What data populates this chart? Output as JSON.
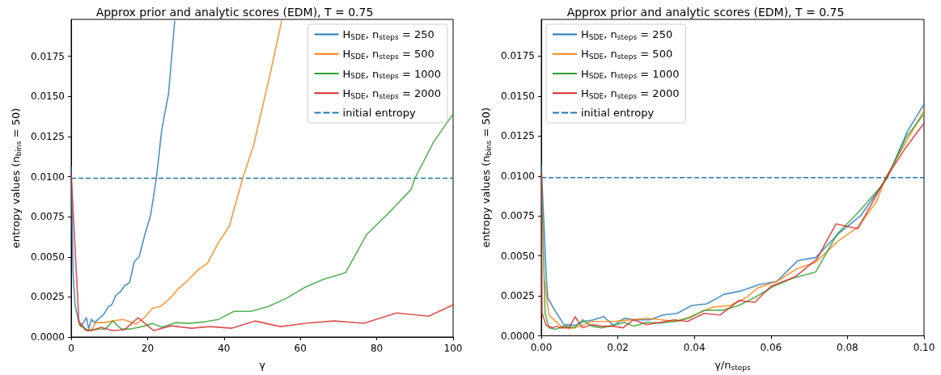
{
  "chart_data": [
    {
      "type": "line",
      "title": "Approx prior and analytic scores (EDM), T = 0.75",
      "xlabel": "γ",
      "ylabel": "entropy values (n$_{bins}$ = 50)",
      "xlim": [
        0,
        100
      ],
      "xticks": [
        0,
        20,
        40,
        60,
        80,
        100
      ],
      "ylim": [
        0,
        0.0198
      ],
      "yticks": [
        {
          "value": 0,
          "label": "0.0000"
        },
        {
          "value": 0.0025,
          "label": "0.0025"
        },
        {
          "value": 0.005,
          "label": "0.0050"
        },
        {
          "value": 0.0075,
          "label": "0.0075"
        },
        {
          "value": 0.01,
          "label": "0.0100"
        },
        {
          "value": 0.0125,
          "label": "0.0125"
        },
        {
          "value": 0.015,
          "label": "0.0150"
        },
        {
          "value": 0.0175,
          "label": "0.0175"
        }
      ],
      "grid": false,
      "legend": "top right",
      "line_style": "solid",
      "marker": "none",
      "ref_lines": [
        {
          "axis": "y",
          "value": 0.0099,
          "label": "initial entropy",
          "color": "#1f77b4",
          "line_style": "dashed"
        }
      ],
      "series": [
        {
          "name": "H$_{SDE}$, n$_{steps}$ = 250",
          "color": "#1f77b4",
          "x": [
            0,
            0.5,
            1,
            2,
            2.5,
            4,
            4.6,
            5.3,
            6.1,
            7.5,
            8.5,
            9.75,
            10.6,
            11.7,
            12.8,
            14,
            15.3,
            16.5,
            17.8,
            19.3,
            20.8,
            22.3,
            23.7,
            25.5,
            27.1
          ],
          "values": [
            0.0106,
            0.004,
            0.002,
            0.0009,
            0.00065,
            0.0012,
            0.0005,
            0.0011,
            0.0009,
            0.0012,
            0.0014,
            0.0019,
            0.002,
            0.0026,
            0.0028,
            0.0032,
            0.0034,
            0.0047,
            0.005,
            0.0064,
            0.0076,
            0.0099,
            0.0129,
            0.0152,
            0.0197
          ]
        },
        {
          "name": "H$_{SDE}$, n$_{steps}$ = 500",
          "color": "#ff7f0e",
          "x": [
            2,
            3.5,
            5.3,
            6.4,
            8.7,
            10.8,
            13.5,
            14.9,
            17,
            19.1,
            21.3,
            23.4,
            25.8,
            28,
            30.4,
            33.3,
            35.7,
            38.6,
            41.4,
            44.9,
            47.7,
            52,
            55.1
          ],
          "values": [
            0.0009,
            0.0005,
            0.0004,
            0.0009,
            0.0009,
            0.001,
            0.0011,
            0.001,
            0.0008,
            0.0012,
            0.0018,
            0.0019,
            0.0024,
            0.003,
            0.0035,
            0.0042,
            0.0046,
            0.0059,
            0.0069,
            0.0099,
            0.0119,
            0.0163,
            0.0197
          ]
        },
        {
          "name": "H$_{SDE}$, n$_{steps}$ = 1000",
          "color": "#2ca02c",
          "x": [
            2,
            4.3,
            5.3,
            8.9,
            10.9,
            13.1,
            15.6,
            19.5,
            21.3,
            23.7,
            27.3,
            30.8,
            35,
            38.6,
            42.6,
            47,
            51.6,
            56.2,
            61.2,
            66.1,
            71.8,
            77.4,
            83,
            89,
            90,
            95,
            100
          ],
          "values": [
            0.0008,
            0.0004,
            0.00045,
            0.0005,
            0.001,
            0.0005,
            0.0005,
            0.0007,
            0.00085,
            0.0006,
            0.0009,
            0.00085,
            0.00095,
            0.0011,
            0.0016,
            0.0016,
            0.0019,
            0.0024,
            0.0031,
            0.0036,
            0.004,
            0.0064,
            0.0077,
            0.0092,
            0.0099,
            0.0122,
            0.0139
          ]
        },
        {
          "name": "H$_{SDE}$, n$_{steps}$ = 2000",
          "color": "#d62728",
          "x": [
            0,
            2,
            3.9,
            5.3,
            7.8,
            10.8,
            13.9,
            17.5,
            21.6,
            26.2,
            31.5,
            36.4,
            42.1,
            48.1,
            54.8,
            61.8,
            68.9,
            76.6,
            85.2,
            93.6,
            100
          ],
          "values": [
            0.0102,
            0.001,
            0.0004,
            0.0004,
            0.0006,
            0.0004,
            0.00045,
            0.0012,
            0.0004,
            0.0007,
            0.00055,
            0.00065,
            0.00055,
            0.001,
            0.00065,
            0.00087,
            0.001,
            0.00086,
            0.0015,
            0.0013,
            0.002
          ]
        }
      ]
    },
    {
      "type": "line",
      "title": "Approx prior and analytic scores (EDM), T = 0.75",
      "xlabel": "γ/n$_{steps}$",
      "ylabel": "entropy values (n$_{bins}$ = 50)",
      "xlim": [
        0,
        0.1
      ],
      "xticks": [
        {
          "value": 0,
          "label": "0.00"
        },
        {
          "value": 0.02,
          "label": "0.02"
        },
        {
          "value": 0.04,
          "label": "0.04"
        },
        {
          "value": 0.06,
          "label": "0.06"
        },
        {
          "value": 0.08,
          "label": "0.08"
        },
        {
          "value": 0.1,
          "label": "0.10"
        }
      ],
      "ylim": [
        0,
        0.0198
      ],
      "yticks": [
        {
          "value": 0,
          "label": "0.0000"
        },
        {
          "value": 0.0025,
          "label": "0.0025"
        },
        {
          "value": 0.005,
          "label": "0.0050"
        },
        {
          "value": 0.0075,
          "label": "0.0075"
        },
        {
          "value": 0.01,
          "label": "0.0100"
        },
        {
          "value": 0.0125,
          "label": "0.0125"
        },
        {
          "value": 0.015,
          "label": "0.0150"
        },
        {
          "value": 0.0175,
          "label": "0.0175"
        }
      ],
      "grid": false,
      "legend": "top left",
      "line_style": "solid",
      "marker": "none",
      "ref_lines": [
        {
          "axis": "y",
          "value": 0.0099,
          "label": "initial entropy",
          "color": "#1f77b4",
          "line_style": "dashed"
        }
      ],
      "series": [
        {
          "name": "H$_{SDE}$, n$_{steps}$ = 250",
          "color": "#1f77b4",
          "x": [
            0,
            0.0013,
            0.0017,
            0.003,
            0.0059,
            0.0087,
            0.0111,
            0.0136,
            0.0163,
            0.0189,
            0.0217,
            0.0245,
            0.0284,
            0.0318,
            0.0355,
            0.0393,
            0.0432,
            0.0478,
            0.052,
            0.0569,
            0.0615,
            0.067,
            0.0717,
            0.0777,
            0.0834,
            0.0904,
            0.0957,
            0.1
          ],
          "values": [
            0.0107,
            0.0037,
            0.0024,
            0.0018,
            0.0007,
            0.00065,
            0.0009,
            0.001,
            0.0012,
            0.00065,
            0.0011,
            0.001,
            0.001,
            0.0013,
            0.0014,
            0.0019,
            0.002,
            0.0026,
            0.0028,
            0.0032,
            0.0034,
            0.0047,
            0.0049,
            0.0064,
            0.0075,
            0.0099,
            0.0128,
            0.0145
          ]
        },
        {
          "name": "H$_{SDE}$, n$_{steps}$ = 500",
          "color": "#ff7f0e",
          "x": [
            0.0009,
            0.002,
            0.0049,
            0.0073,
            0.0102,
            0.013,
            0.019,
            0.0277,
            0.0355,
            0.039,
            0.0448,
            0.0494,
            0.0536,
            0.0566,
            0.0615,
            0.0668,
            0.0717,
            0.0774,
            0.0827,
            0.0876,
            0.09,
            0.1
          ],
          "values": [
            0.0034,
            0.0013,
            0.00065,
            0.00045,
            0.0006,
            0.0009,
            0.0009,
            0.0011,
            0.0009,
            0.0012,
            0.0018,
            0.0019,
            0.0024,
            0.003,
            0.0034,
            0.0042,
            0.0046,
            0.0059,
            0.0068,
            0.0084,
            0.0099,
            0.0141
          ]
        },
        {
          "name": "H$_{SDE}$, n$_{steps}$ = 1000",
          "color": "#2ca02c",
          "x": [
            0,
            0.001,
            0.002,
            0.0037,
            0.0059,
            0.0087,
            0.0108,
            0.0132,
            0.0157,
            0.0196,
            0.0217,
            0.0241,
            0.0277,
            0.0312,
            0.0347,
            0.0386,
            0.0425,
            0.0474,
            0.0516,
            0.0558,
            0.0607,
            0.0657,
            0.0717,
            0.0774,
            0.0827,
            0.089,
            0.0904,
            0.0953,
            0.1
          ],
          "values": [
            0.0101,
            0.0014,
            0.0005,
            0.0004,
            0.0006,
            0.0005,
            0.001,
            0.0006,
            0.0005,
            0.0007,
            0.00085,
            0.0006,
            0.00085,
            0.0008,
            0.0009,
            0.0011,
            0.0016,
            0.0016,
            0.0019,
            0.0024,
            0.0031,
            0.0036,
            0.004,
            0.0064,
            0.0077,
            0.0094,
            0.0099,
            0.0124,
            0.0139
          ]
        },
        {
          "name": "H$_{SDE}$, n$_{steps}$ = 2000",
          "color": "#d62728",
          "x": [
            0,
            0.0002,
            0.0013,
            0.003,
            0.004,
            0.005,
            0.0073,
            0.0088,
            0.0108,
            0.0132,
            0.0157,
            0.0185,
            0.0214,
            0.0241,
            0.0277,
            0.0312,
            0.0347,
            0.0382,
            0.0425,
            0.0467,
            0.0516,
            0.0558,
            0.06,
            0.0664,
            0.072,
            0.077,
            0.0827,
            0.0901,
            0.0953,
            0.1
          ],
          "values": [
            0.0102,
            0.0014,
            0.00065,
            0.0005,
            0.0006,
            0.0005,
            0.0005,
            0.0012,
            0.0005,
            0.0007,
            0.0006,
            0.0006,
            0.0005,
            0.001,
            0.0007,
            0.00085,
            0.001,
            0.0009,
            0.0014,
            0.0013,
            0.0022,
            0.0021,
            0.0031,
            0.0037,
            0.0048,
            0.007,
            0.0067,
            0.0099,
            0.0118,
            0.0133
          ]
        }
      ]
    }
  ]
}
